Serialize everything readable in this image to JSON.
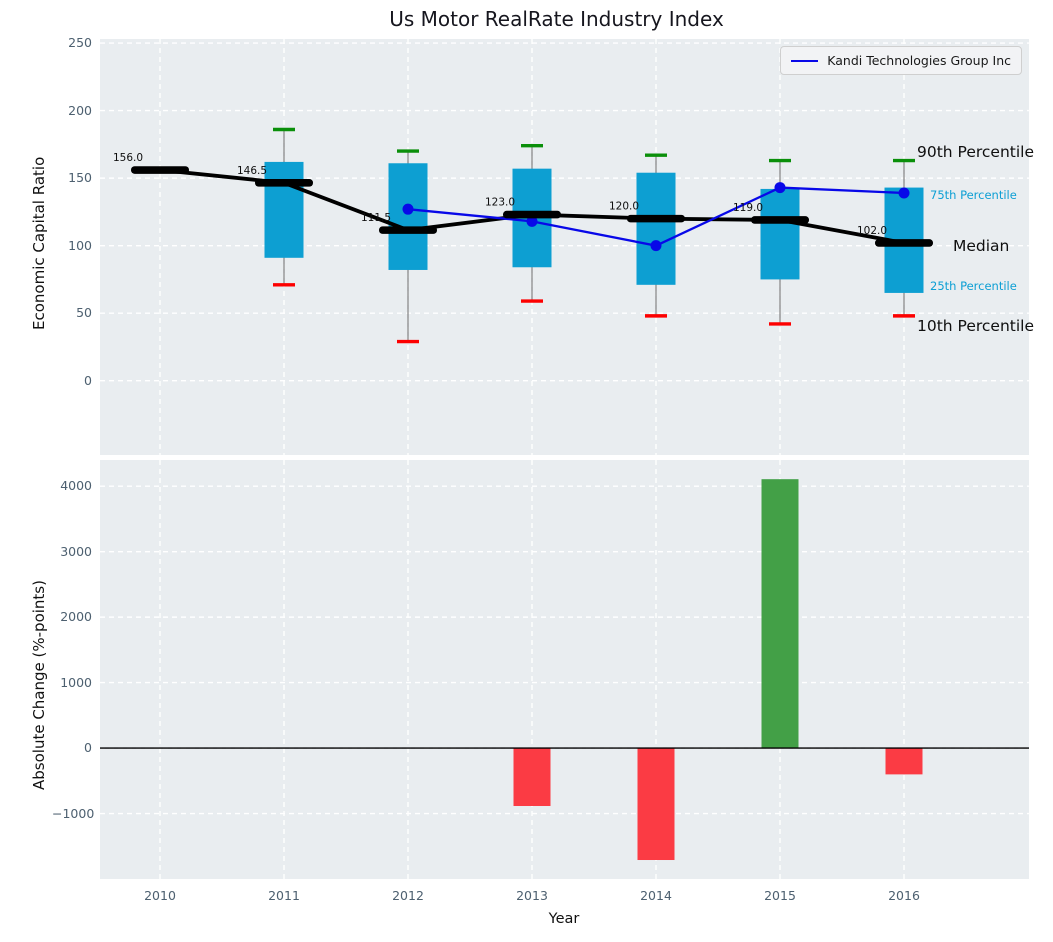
{
  "title": "Us Motor RealRate Industry Index",
  "legend": {
    "label": "Kandi Technologies Group Inc"
  },
  "axis": {
    "xlabel": "Year",
    "top_ylabel": "Economic Capital Ratio",
    "bottom_ylabel": "Absolute Change (%-points)"
  },
  "annotations": {
    "p90": "90th Percentile",
    "p75": "75th Percentile",
    "median": "Median",
    "p25": "25th Percentile",
    "p10": "10th Percentile"
  },
  "colors": {
    "plot_bg": "#e9edf0",
    "grid": "#ffffff",
    "box": "#0d9fd2",
    "percentile_label": "#0d9fd4",
    "green_cap": "#0a8f0a",
    "red_cap": "#fd0000",
    "bar_positive": "#43a047",
    "bar_negative": "#fb3b44",
    "company_line": "#0808e8",
    "median_line": "#000000",
    "whisker": "#8a8a8a",
    "tick_label": "#4d6070"
  },
  "chart_data": [
    {
      "type": "boxplot+line",
      "title": "Us Motor RealRate Industry Index",
      "ylabel": "Economic Capital Ratio",
      "categories": [
        2010,
        2011,
        2012,
        2013,
        2014,
        2015,
        2016
      ],
      "yticks": [
        250,
        200,
        150,
        100,
        50,
        0
      ],
      "ylim": [
        -55,
        253
      ],
      "grid": true,
      "legend_position": "upper right",
      "median": [
        156.0,
        146.5,
        111.5,
        123.0,
        120.0,
        119.0,
        102.0
      ],
      "median_labels": [
        "156.0",
        "146.5",
        "111.5",
        "123.0",
        "120.0",
        "119.0",
        "102.0"
      ],
      "p90": [
        null,
        186,
        170,
        174,
        167,
        163,
        163
      ],
      "p75": [
        null,
        162,
        161,
        157,
        154,
        142,
        143
      ],
      "p25": [
        null,
        91,
        82,
        84,
        71,
        75,
        65
      ],
      "p10": [
        null,
        71,
        29,
        59,
        48,
        42,
        48
      ],
      "series": [
        {
          "name": "Kandi Technologies Group Inc",
          "x": [
            2012,
            2013,
            2014,
            2015,
            2016
          ],
          "values": [
            127,
            118,
            100,
            143,
            139
          ]
        }
      ]
    },
    {
      "type": "bar",
      "ylabel": "Absolute Change (%-points)",
      "xlabel": "Year",
      "categories": [
        2010,
        2011,
        2012,
        2013,
        2014,
        2015,
        2016
      ],
      "values": [
        0,
        0,
        0,
        -885,
        -1710,
        4107,
        -402
      ],
      "yticks": [
        4000,
        3000,
        2000,
        1000,
        0,
        -1000
      ],
      "ylim": [
        -2000,
        4400
      ],
      "grid": true
    }
  ]
}
